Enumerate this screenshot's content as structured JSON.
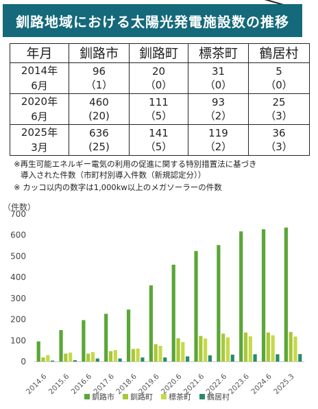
{
  "title": "釧路地域における太陽光発電施設数の推移",
  "table": {
    "headers": [
      "年月",
      "釧路市",
      "釧路町",
      "標茶町",
      "鶴居村"
    ],
    "rows": [
      {
        "period": [
          "2014年",
          "6月"
        ],
        "cells": [
          [
            "96",
            "（1）"
          ],
          [
            "20",
            "（0）"
          ],
          [
            "31",
            "（0）"
          ],
          [
            "5",
            "（0）"
          ]
        ]
      },
      {
        "period": [
          "2020年",
          "6月"
        ],
        "cells": [
          [
            "460",
            "(20)"
          ],
          [
            "111",
            "（5）"
          ],
          [
            "93",
            "（2）"
          ],
          [
            "25",
            "（3）"
          ]
        ]
      },
      {
        "period": [
          "2025年",
          "3月"
        ],
        "cells": [
          [
            "636",
            "(25)"
          ],
          [
            "141",
            "（5）"
          ],
          [
            "119",
            "（2）"
          ],
          [
            "36",
            "（3）"
          ]
        ]
      }
    ]
  },
  "notes": {
    "note1_line1": "※再生可能エネルギー電気の利用の促進に関する特別措置法に基づき",
    "note1_line2": "導入された件数（市町村別導入件数（新規認定分））",
    "note2": "※ カッコ以内の数字は1,000kw以上のメガソーラーの件数"
  },
  "chart_data": {
    "type": "bar",
    "ylabel": "（件数）",
    "ylim": [
      0,
      700
    ],
    "yticks": [
      0,
      100,
      200,
      300,
      400,
      500,
      600,
      700
    ],
    "categories": [
      "2014.6",
      "2015.6",
      "2016.6",
      "2017.6",
      "2018.6",
      "2019.6",
      "2020.6",
      "2021.6",
      "2022.6",
      "2023.6",
      "2024.6",
      "2025.3"
    ],
    "series": [
      {
        "name": "釧路市",
        "color": "#5aa636",
        "values": [
          96,
          150,
          197,
          227,
          247,
          362,
          460,
          525,
          553,
          618,
          628,
          636
        ]
      },
      {
        "name": "釧路町",
        "color": "#a8c838",
        "values": [
          20,
          38,
          38,
          50,
          60,
          83,
          111,
          122,
          133,
          138,
          138,
          141
        ]
      },
      {
        "name": "標茶町",
        "color": "#c5d94a",
        "values": [
          31,
          43,
          45,
          55,
          62,
          75,
          93,
          110,
          115,
          120,
          125,
          119
        ]
      },
      {
        "name": "鶴居村",
        "color": "#2a8a6e",
        "values": [
          5,
          7,
          15,
          15,
          20,
          20,
          25,
          30,
          33,
          35,
          35,
          36
        ]
      }
    ],
    "legend_position": "bottom",
    "grid": false
  }
}
